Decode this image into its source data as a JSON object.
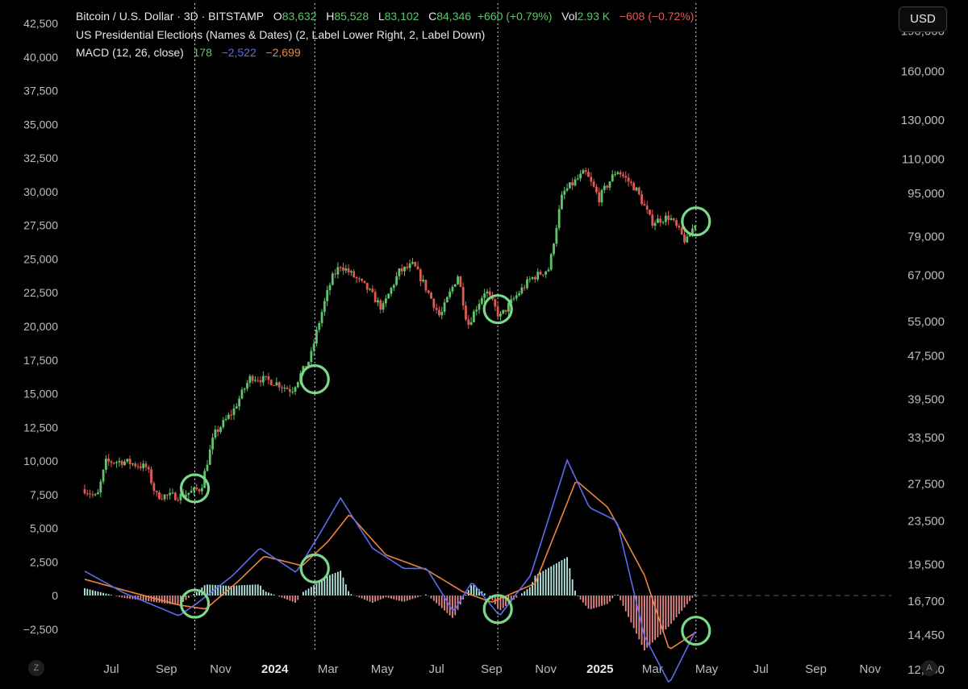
{
  "header": {
    "symbol": "Bitcoin / U.S. Dollar · 3D · BITSTAMP",
    "open_label": "O",
    "open": "83,632",
    "high_label": "H",
    "high": "85,528",
    "low_label": "L",
    "low": "83,102",
    "close_label": "C",
    "close": "84,346",
    "change": "+660 (+0.79%)",
    "vol_label": "Vol",
    "vol": "2.93 K",
    "vol_change": "−608 (−0.72%)"
  },
  "indicators": {
    "elections": "US Presidential Elections (Names & Dates) (2, Label Lower Right, 2, Label Down)",
    "macd_label": "MACD (12, 26, close)",
    "macd_hist": "178",
    "macd_line": "−2,522",
    "macd_signal": "−2,699"
  },
  "currency_button": "USD",
  "z_button": "Z",
  "a_button": "A",
  "colors": {
    "up": "#5fc36a",
    "down": "#e05a55",
    "macd": "#5b6cf0",
    "signal": "#f0843c",
    "marker": "#7bd88a"
  },
  "chart_data": {
    "type": "candlestick",
    "price_axis_scale": "log",
    "price_axis_ticks": [
      "190,000",
      "160,000",
      "130,000",
      "110,000",
      "95,000",
      "79,000",
      "67,000",
      "55,000",
      "47,500",
      "39,500",
      "33,500",
      "27,500",
      "23,500",
      "19,500",
      "16,700",
      "14,450",
      "12,450"
    ],
    "macd_axis_ticks": [
      "42,500",
      "40,000",
      "37,500",
      "35,000",
      "32,500",
      "30,000",
      "27,500",
      "25,000",
      "22,500",
      "20,000",
      "17,500",
      "15,000",
      "12,500",
      "10,000",
      "7,500",
      "5,000",
      "2,500",
      "0",
      "−2,500"
    ],
    "time_axis_ticks": [
      "Jul",
      "Sep",
      "Nov",
      "2024",
      "Mar",
      "May",
      "Jul",
      "Sep",
      "Nov",
      "2025",
      "Mar",
      "May",
      "Jul",
      "Sep",
      "Nov"
    ],
    "price_path": [
      [
        "2023-06-01",
        26900
      ],
      [
        "2023-06-15",
        25900
      ],
      [
        "2023-06-25",
        30200
      ],
      [
        "2023-07-15",
        30300
      ],
      [
        "2023-08-10",
        29500
      ],
      [
        "2023-08-20",
        26200
      ],
      [
        "2023-09-15",
        26100
      ],
      [
        "2023-10-10",
        27000
      ],
      [
        "2023-10-25",
        34000
      ],
      [
        "2023-11-15",
        37500
      ],
      [
        "2023-12-05",
        43500
      ],
      [
        "2023-12-31",
        42500
      ],
      [
        "2024-01-20",
        41000
      ],
      [
        "2024-02-10",
        47000
      ],
      [
        "2024-03-05",
        66000
      ],
      [
        "2024-03-15",
        70000
      ],
      [
        "2024-04-15",
        63000
      ],
      [
        "2024-05-01",
        58000
      ],
      [
        "2024-05-20",
        68000
      ],
      [
        "2024-06-05",
        70000
      ],
      [
        "2024-07-05",
        56000
      ],
      [
        "2024-07-25",
        67000
      ],
      [
        "2024-08-05",
        54000
      ],
      [
        "2024-08-25",
        63000
      ],
      [
        "2024-09-10",
        56000
      ],
      [
        "2024-10-15",
        66000
      ],
      [
        "2024-11-05",
        69000
      ],
      [
        "2024-11-20",
        95000
      ],
      [
        "2024-12-15",
        104000
      ],
      [
        "2024-12-31",
        93000
      ],
      [
        "2025-01-20",
        105000
      ],
      [
        "2025-02-10",
        97000
      ],
      [
        "2025-02-28",
        84000
      ],
      [
        "2025-03-20",
        86000
      ],
      [
        "2025-04-08",
        77000
      ],
      [
        "2025-04-19",
        84346
      ]
    ],
    "macd_line_path": [
      [
        "2023-06-01",
        1800
      ],
      [
        "2023-07-15",
        200
      ],
      [
        "2023-09-15",
        -1500
      ],
      [
        "2023-10-05",
        -600
      ],
      [
        "2023-11-15",
        1500
      ],
      [
        "2023-12-15",
        3500
      ],
      [
        "2024-01-25",
        1700
      ],
      [
        "2024-02-20",
        4500
      ],
      [
        "2024-03-15",
        7200
      ],
      [
        "2024-04-20",
        3500
      ],
      [
        "2024-05-25",
        2000
      ],
      [
        "2024-06-20",
        2000
      ],
      [
        "2024-07-20",
        -1200
      ],
      [
        "2024-08-10",
        1000
      ],
      [
        "2024-09-10",
        -1500
      ],
      [
        "2024-10-15",
        1500
      ],
      [
        "2024-11-25",
        10000
      ],
      [
        "2024-12-20",
        6500
      ],
      [
        "2025-01-20",
        5500
      ],
      [
        "2025-02-20",
        -3000
      ],
      [
        "2025-03-20",
        -6500
      ],
      [
        "2025-04-19",
        -2522
      ]
    ],
    "signal_line_path": [
      [
        "2023-06-01",
        1200
      ],
      [
        "2023-07-15",
        400
      ],
      [
        "2023-09-15",
        -700
      ],
      [
        "2023-10-15",
        -1000
      ],
      [
        "2023-11-20",
        1000
      ],
      [
        "2023-12-20",
        2900
      ],
      [
        "2024-02-01",
        2200
      ],
      [
        "2024-03-01",
        4000
      ],
      [
        "2024-03-25",
        6000
      ],
      [
        "2024-05-05",
        3000
      ],
      [
        "2024-06-20",
        1900
      ],
      [
        "2024-07-30",
        300
      ],
      [
        "2024-09-01",
        -500
      ],
      [
        "2024-10-20",
        900
      ],
      [
        "2024-12-05",
        8500
      ],
      [
        "2025-01-10",
        6500
      ],
      [
        "2025-02-20",
        1500
      ],
      [
        "2025-03-20",
        -4000
      ],
      [
        "2025-04-19",
        -2699
      ]
    ],
    "election_dates": [
      "2023-10-03",
      "2024-02-15",
      "2024-09-08",
      "2025-04-19"
    ],
    "circle_markers": [
      {
        "date": "2023-10-03",
        "price": 27000
      },
      {
        "date": "2024-02-15",
        "price": 43000
      },
      {
        "date": "2024-09-08",
        "price": 58000
      },
      {
        "date": "2025-04-19",
        "price": 84300
      },
      {
        "date": "2023-10-03",
        "macd": -600
      },
      {
        "date": "2024-02-15",
        "macd": 2000
      },
      {
        "date": "2024-09-08",
        "macd": -1000
      },
      {
        "date": "2025-04-19",
        "macd": -2600
      }
    ],
    "grid": false
  }
}
